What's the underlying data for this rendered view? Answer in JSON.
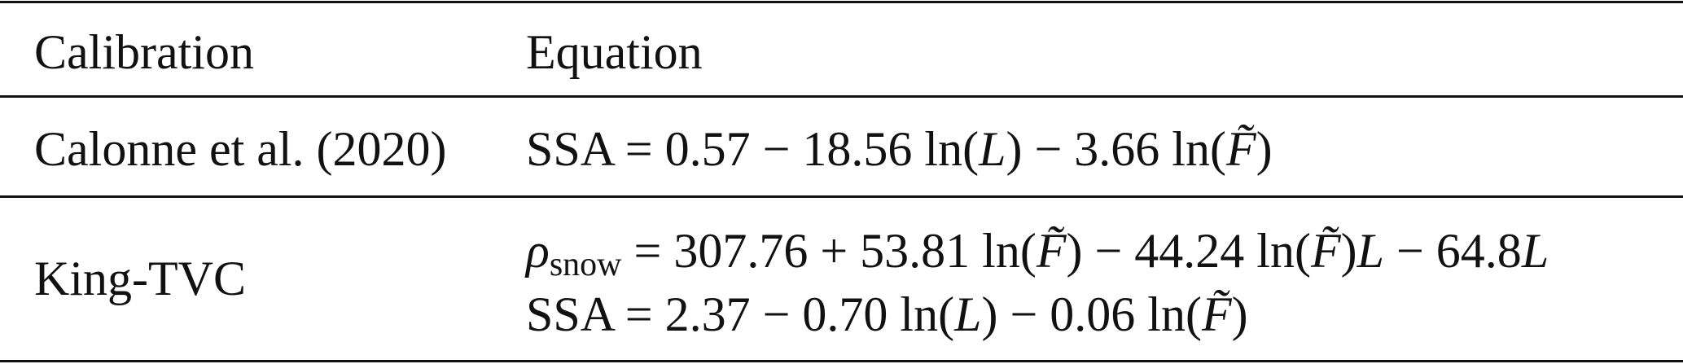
{
  "table": {
    "headers": [
      "Calibration",
      "Equation"
    ],
    "rows": [
      {
        "calibration": "Calonne et al. (2020)",
        "equations": [
          "SSA = 0.57 − 18.56 ln(L) − 3.66 ln(F̃)"
        ]
      },
      {
        "calibration": "King-TVC",
        "equations": [
          "ρ_snow = 307.76 + 53.81 ln(F̃) − 44.24 ln(F̃)L − 64.8L",
          "SSA = 2.37 − 0.70 ln(L) − 0.06 ln(F̃)"
        ]
      }
    ]
  }
}
